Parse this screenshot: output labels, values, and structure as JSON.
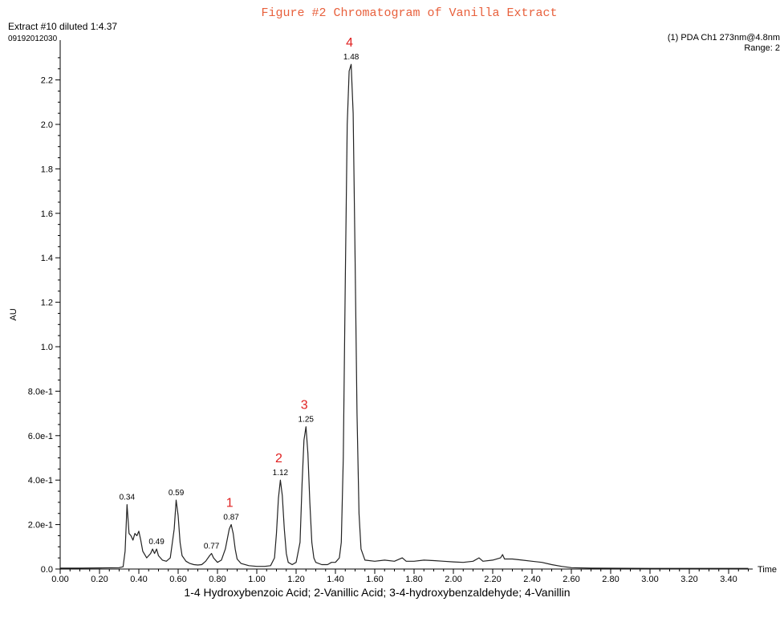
{
  "chart_data": {
    "type": "line",
    "title": "Figure #2 Chromatogram of Vanilla Extract",
    "sample_label": "Extract #10 diluted 1:4.37",
    "sample_id": "09192012030",
    "detector_label": "(1) PDA Ch1 273nm@4.8nm",
    "range_label": "Range: 2",
    "xlabel": "Time",
    "ylabel": "AU",
    "caption": "1-4 Hydroxybenzoic  Acid;  2-Vanillic Acid; 3-4-hydroxybenzaldehyde; 4-Vanillin",
    "xlim": [
      0.0,
      3.5
    ],
    "ylim": [
      0.0,
      2.28
    ],
    "x_ticks": [
      "0.00",
      "0.20",
      "0.40",
      "0.60",
      "0.80",
      "1.00",
      "1.20",
      "1.40",
      "1.60",
      "1.80",
      "2.00",
      "2.20",
      "2.40",
      "2.60",
      "2.80",
      "3.00",
      "3.20",
      "3.40"
    ],
    "x_tick_values": [
      0,
      0.2,
      0.4,
      0.6,
      0.8,
      1.0,
      1.2,
      1.4,
      1.6,
      1.8,
      2.0,
      2.2,
      2.4,
      2.6,
      2.8,
      3.0,
      3.2,
      3.4
    ],
    "y_ticks": [
      "0.0",
      "2.0e-1",
      "4.0e-1",
      "6.0e-1",
      "8.0e-1",
      "1.0",
      "1.2",
      "1.4",
      "1.6",
      "1.8",
      "2.0",
      "2.2"
    ],
    "y_tick_values": [
      0,
      0.2,
      0.4,
      0.6,
      0.8,
      1.0,
      1.2,
      1.4,
      1.6,
      1.8,
      2.0,
      2.2
    ],
    "grid": false,
    "peaks": [
      {
        "rt": 0.34,
        "label": "0.34",
        "height": 0.29,
        "number": ""
      },
      {
        "rt": 0.49,
        "label": "0.49",
        "height": 0.09,
        "number": ""
      },
      {
        "rt": 0.59,
        "label": "0.59",
        "height": 0.31,
        "number": ""
      },
      {
        "rt": 0.77,
        "label": "0.77",
        "height": 0.07,
        "number": ""
      },
      {
        "rt": 0.87,
        "label": "0.87",
        "height": 0.2,
        "number": "1"
      },
      {
        "rt": 1.12,
        "label": "1.12",
        "height": 0.4,
        "number": "2"
      },
      {
        "rt": 1.25,
        "label": "1.25",
        "height": 0.64,
        "number": "3"
      },
      {
        "rt": 1.48,
        "label": "1.48",
        "height": 2.27,
        "number": "4"
      }
    ],
    "trace": [
      [
        0.0,
        0.004
      ],
      [
        0.1,
        0.004
      ],
      [
        0.2,
        0.005
      ],
      [
        0.3,
        0.006
      ],
      [
        0.32,
        0.01
      ],
      [
        0.33,
        0.08
      ],
      [
        0.34,
        0.29
      ],
      [
        0.35,
        0.16
      ],
      [
        0.36,
        0.15
      ],
      [
        0.37,
        0.13
      ],
      [
        0.38,
        0.16
      ],
      [
        0.39,
        0.15
      ],
      [
        0.4,
        0.17
      ],
      [
        0.41,
        0.13
      ],
      [
        0.42,
        0.08
      ],
      [
        0.44,
        0.05
      ],
      [
        0.46,
        0.07
      ],
      [
        0.47,
        0.09
      ],
      [
        0.48,
        0.07
      ],
      [
        0.49,
        0.09
      ],
      [
        0.5,
        0.06
      ],
      [
        0.52,
        0.04
      ],
      [
        0.54,
        0.035
      ],
      [
        0.56,
        0.05
      ],
      [
        0.58,
        0.18
      ],
      [
        0.59,
        0.31
      ],
      [
        0.6,
        0.24
      ],
      [
        0.61,
        0.12
      ],
      [
        0.62,
        0.06
      ],
      [
        0.64,
        0.035
      ],
      [
        0.66,
        0.025
      ],
      [
        0.68,
        0.02
      ],
      [
        0.7,
        0.018
      ],
      [
        0.72,
        0.02
      ],
      [
        0.74,
        0.035
      ],
      [
        0.76,
        0.06
      ],
      [
        0.77,
        0.07
      ],
      [
        0.78,
        0.05
      ],
      [
        0.8,
        0.03
      ],
      [
        0.82,
        0.04
      ],
      [
        0.84,
        0.09
      ],
      [
        0.86,
        0.18
      ],
      [
        0.87,
        0.2
      ],
      [
        0.88,
        0.16
      ],
      [
        0.89,
        0.09
      ],
      [
        0.9,
        0.045
      ],
      [
        0.92,
        0.025
      ],
      [
        0.96,
        0.015
      ],
      [
        1.0,
        0.012
      ],
      [
        1.04,
        0.012
      ],
      [
        1.07,
        0.015
      ],
      [
        1.09,
        0.05
      ],
      [
        1.1,
        0.16
      ],
      [
        1.11,
        0.32
      ],
      [
        1.12,
        0.4
      ],
      [
        1.13,
        0.33
      ],
      [
        1.14,
        0.18
      ],
      [
        1.15,
        0.07
      ],
      [
        1.16,
        0.03
      ],
      [
        1.18,
        0.02
      ],
      [
        1.2,
        0.03
      ],
      [
        1.22,
        0.12
      ],
      [
        1.23,
        0.38
      ],
      [
        1.24,
        0.58
      ],
      [
        1.25,
        0.64
      ],
      [
        1.26,
        0.52
      ],
      [
        1.27,
        0.3
      ],
      [
        1.28,
        0.12
      ],
      [
        1.29,
        0.05
      ],
      [
        1.3,
        0.03
      ],
      [
        1.33,
        0.02
      ],
      [
        1.36,
        0.02
      ],
      [
        1.38,
        0.03
      ],
      [
        1.4,
        0.03
      ],
      [
        1.42,
        0.05
      ],
      [
        1.43,
        0.12
      ],
      [
        1.44,
        0.5
      ],
      [
        1.45,
        1.3
      ],
      [
        1.46,
        2.0
      ],
      [
        1.47,
        2.24
      ],
      [
        1.48,
        2.27
      ],
      [
        1.49,
        2.05
      ],
      [
        1.5,
        1.4
      ],
      [
        1.51,
        0.7
      ],
      [
        1.52,
        0.25
      ],
      [
        1.53,
        0.09
      ],
      [
        1.55,
        0.04
      ],
      [
        1.6,
        0.035
      ],
      [
        1.65,
        0.04
      ],
      [
        1.7,
        0.035
      ],
      [
        1.74,
        0.05
      ],
      [
        1.76,
        0.035
      ],
      [
        1.8,
        0.035
      ],
      [
        1.85,
        0.04
      ],
      [
        1.9,
        0.038
      ],
      [
        1.95,
        0.035
      ],
      [
        2.0,
        0.032
      ],
      [
        2.05,
        0.03
      ],
      [
        2.1,
        0.035
      ],
      [
        2.13,
        0.05
      ],
      [
        2.15,
        0.035
      ],
      [
        2.2,
        0.04
      ],
      [
        2.24,
        0.05
      ],
      [
        2.25,
        0.065
      ],
      [
        2.26,
        0.045
      ],
      [
        2.3,
        0.045
      ],
      [
        2.35,
        0.04
      ],
      [
        2.4,
        0.035
      ],
      [
        2.45,
        0.03
      ],
      [
        2.5,
        0.02
      ],
      [
        2.55,
        0.012
      ],
      [
        2.6,
        0.006
      ],
      [
        2.7,
        0.004
      ],
      [
        3.0,
        0.003
      ],
      [
        3.2,
        0.003
      ],
      [
        3.4,
        0.003
      ],
      [
        3.5,
        0.003
      ]
    ]
  }
}
